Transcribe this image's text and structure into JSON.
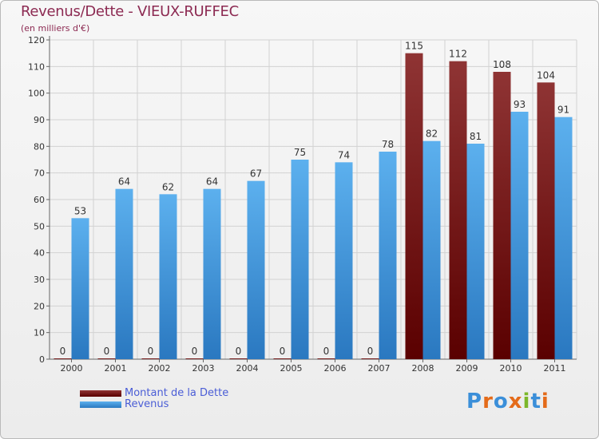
{
  "header": {
    "title": "Revenus/Dette - VIEUX-RUFFEC",
    "subtitle": "(en milliers d'€)"
  },
  "legend": {
    "items": [
      {
        "label": "Montant de la Dette",
        "color": "#7a1414"
      },
      {
        "label": "Revenus",
        "color": "#4da3e6"
      }
    ]
  },
  "logo": {
    "text": "Proxiti",
    "colors": [
      "#3b8fd9",
      "#e46b1a",
      "#3b8fd9",
      "#e46b1a",
      "#7cb72a",
      "#3b8fd9",
      "#e46b1a"
    ]
  },
  "chart_data": {
    "type": "bar",
    "title": "Revenus/Dette - VIEUX-RUFFEC",
    "subtitle": "(en milliers d'€)",
    "xlabel": "",
    "ylabel": "",
    "ylim": [
      0,
      120
    ],
    "yticks": [
      0,
      10,
      20,
      30,
      40,
      50,
      60,
      70,
      80,
      90,
      100,
      110,
      120
    ],
    "grid": true,
    "legend_position": "bottom-left",
    "categories": [
      "2000",
      "2001",
      "2002",
      "2003",
      "2004",
      "2005",
      "2006",
      "2007",
      "2008",
      "2009",
      "2010",
      "2011"
    ],
    "series": [
      {
        "name": "Montant de la Dette",
        "color": "#7a1414",
        "values": [
          0,
          0,
          0,
          0,
          0,
          0,
          0,
          0,
          115,
          112,
          108,
          104
        ]
      },
      {
        "name": "Revenus",
        "color": "#4da3e6",
        "values": [
          53,
          64,
          62,
          64,
          67,
          75,
          74,
          78,
          82,
          81,
          93,
          91
        ]
      }
    ]
  }
}
